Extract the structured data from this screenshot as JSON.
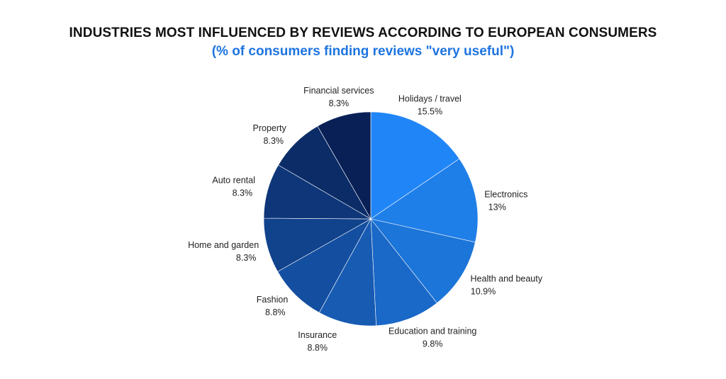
{
  "header": {
    "title": "INDUSTRIES MOST INFLUENCED BY REVIEWS ACCORDING TO EUROPEAN CONSUMERS",
    "subtitle": "(% of consumers finding reviews \"very useful\")"
  },
  "colors": {
    "title": "#111111",
    "subtitle": "#1e74e0",
    "slices": [
      "#2086f7",
      "#1f7fe8",
      "#1c75d8",
      "#1a68c7",
      "#175bb3",
      "#144ea0",
      "#11428c",
      "#0e3679",
      "#0b2c67",
      "#082056",
      "#061848"
    ]
  },
  "chart_data": {
    "type": "pie",
    "title": "INDUSTRIES MOST INFLUENCED BY REVIEWS ACCORDING TO EUROPEAN CONSUMERS",
    "subtitle": "(% of consumers finding reviews \"very useful\")",
    "slices": [
      {
        "label": "Holidays / travel",
        "value": 15.5,
        "display": "15.5%"
      },
      {
        "label": "Electronics",
        "value": 13,
        "display": "13%"
      },
      {
        "label": "Health and beauty",
        "value": 10.9,
        "display": "10.9%"
      },
      {
        "label": "Education and training",
        "value": 9.8,
        "display": "9.8%"
      },
      {
        "label": "Insurance",
        "value": 8.8,
        "display": "8.8%"
      },
      {
        "label": "Fashion",
        "value": 8.8,
        "display": "8.8%"
      },
      {
        "label": "Home and garden",
        "value": 8.3,
        "display": "8.3%"
      },
      {
        "label": "Auto rental",
        "value": 8.3,
        "display": "8.3%"
      },
      {
        "label": "Property",
        "value": 8.3,
        "display": "8.3%"
      },
      {
        "label": "Financial services",
        "value": 8.3,
        "display": "8.3%"
      }
    ]
  }
}
